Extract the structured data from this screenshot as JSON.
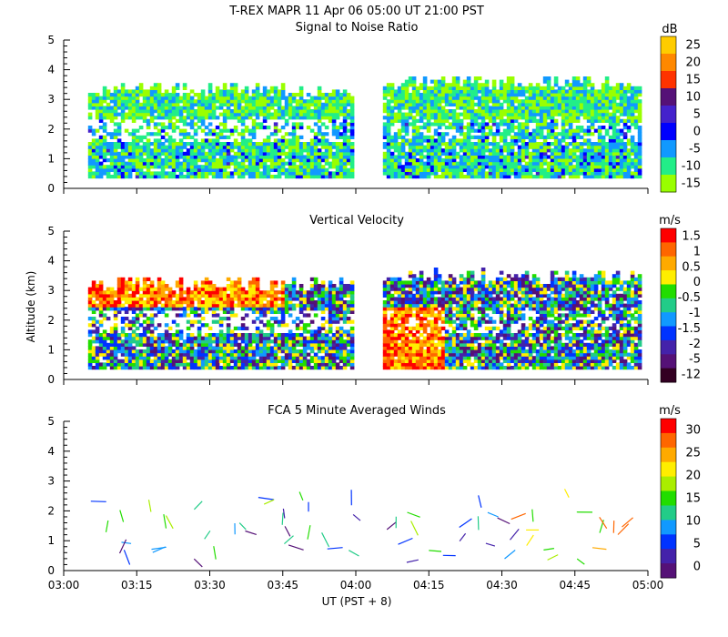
{
  "header": {
    "title_line1": "T-REX   MAPR 11 Apr 06   05:00 UT   21:00   PST",
    "title_line2": "Signal to Noise Ratio"
  },
  "axes": {
    "ylabel": "Altitude (km)",
    "xlabel": "UT  (PST + 8)",
    "x_ticks": [
      "03:00",
      "03:15",
      "03:30",
      "03:45",
      "04:00",
      "04:15",
      "04:30",
      "04:45",
      "05:00"
    ],
    "y_ticks": [
      "0",
      "1",
      "2",
      "3",
      "4",
      "5"
    ]
  },
  "chart_data": [
    {
      "type": "heatmap",
      "title": "Signal to Noise Ratio",
      "xlabel": "UT (PST + 8)",
      "ylabel": "Altitude (km)",
      "xlim": [
        "03:00",
        "05:00"
      ],
      "ylim": [
        0,
        5
      ],
      "colorbar_unit": "dB",
      "colorbar_labels": [
        "25",
        "20",
        "15",
        "10",
        "5",
        "0",
        "-5",
        "-10",
        "-15"
      ],
      "colorbar_colors": [
        "#ffcc00",
        "#ff8800",
        "#ff3300",
        "#551177",
        "#4422cc",
        "#0000ff",
        "#1199ff",
        "#22ee88",
        "#99ff00"
      ],
      "data_gap": [
        "03:59",
        "04:05"
      ]
    },
    {
      "type": "heatmap",
      "title": "Vertical Velocity",
      "xlabel": "UT (PST + 8)",
      "ylabel": "Altitude (km)",
      "xlim": [
        "03:00",
        "05:00"
      ],
      "ylim": [
        0,
        5
      ],
      "colorbar_unit": "m/s",
      "colorbar_labels": [
        "1.5",
        "1",
        "0.5",
        "0",
        "-0.5",
        "-1",
        "-1.5",
        "-2",
        "-5",
        "-12"
      ],
      "colorbar_colors": [
        "#ff0000",
        "#ff6600",
        "#ffaa00",
        "#ffee00",
        "#22dd00",
        "#22cc88",
        "#1199ff",
        "#0033ff",
        "#4422aa",
        "#551177",
        "#330022"
      ],
      "data_gap": [
        "03:59",
        "04:05"
      ]
    },
    {
      "type": "scatter",
      "title": "FCA 5 Minute Averaged Winds",
      "xlabel": "UT (PST + 8)",
      "ylabel": "Altitude (km)",
      "xlim": [
        "03:00",
        "05:00"
      ],
      "ylim": [
        0,
        5
      ],
      "colorbar_unit": "m/s",
      "colorbar_labels": [
        "30",
        "25",
        "20",
        "15",
        "10",
        "5",
        "0"
      ],
      "colorbar_colors": [
        "#ff0000",
        "#ff6600",
        "#ffaa00",
        "#ffee00",
        "#aaee00",
        "#22dd00",
        "#22cc88",
        "#1199ff",
        "#0033ff",
        "#4422aa",
        "#551177"
      ]
    }
  ],
  "panels": {
    "snr_title": "Signal to Noise Ratio",
    "vv_title": "Vertical Velocity",
    "wind_title": "FCA 5 Minute Averaged Winds",
    "snr_unit": "dB",
    "vv_unit": "m/s",
    "wind_unit": "m/s"
  }
}
